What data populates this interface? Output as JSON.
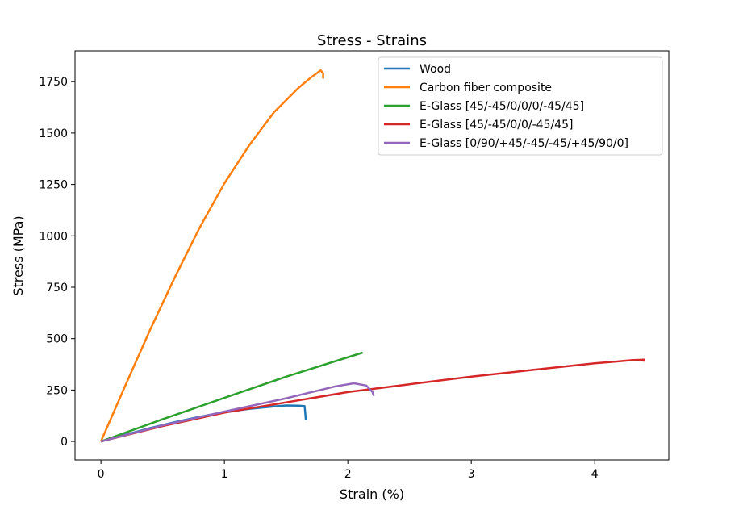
{
  "chart_data": {
    "type": "line",
    "title": "Stress - Strains",
    "xlabel": "Strain (%)",
    "ylabel": "Stress (MPa)",
    "xlim": [
      -0.21,
      4.6
    ],
    "ylim": [
      -90,
      1900
    ],
    "x_ticks": [
      0,
      1,
      2,
      3,
      4
    ],
    "x_tick_labels": [
      "0",
      "1",
      "2",
      "3",
      "4"
    ],
    "y_ticks": [
      0,
      250,
      500,
      750,
      1000,
      1250,
      1500,
      1750
    ],
    "y_tick_labels": [
      "0",
      "250",
      "500",
      "750",
      "1000",
      "1250",
      "1500",
      "1750"
    ],
    "grid": false,
    "legend_position": "top-right",
    "series": [
      {
        "name": "Wood",
        "color": "#1f77b4",
        "points": [
          [
            0,
            0
          ],
          [
            0.2,
            33
          ],
          [
            0.4,
            65
          ],
          [
            0.6,
            94
          ],
          [
            0.8,
            120
          ],
          [
            1.0,
            142
          ],
          [
            1.2,
            158
          ],
          [
            1.4,
            170
          ],
          [
            1.5,
            175
          ],
          [
            1.6,
            174
          ],
          [
            1.65,
            172
          ],
          [
            1.66,
            105
          ]
        ]
      },
      {
        "name": "Carbon fiber composite",
        "color": "#ff7f0e",
        "points": [
          [
            0,
            0
          ],
          [
            0.2,
            275
          ],
          [
            0.4,
            545
          ],
          [
            0.6,
            800
          ],
          [
            0.8,
            1040
          ],
          [
            1.0,
            1255
          ],
          [
            1.2,
            1440
          ],
          [
            1.4,
            1600
          ],
          [
            1.6,
            1720
          ],
          [
            1.7,
            1770
          ],
          [
            1.78,
            1805
          ],
          [
            1.8,
            1790
          ],
          [
            1.8,
            1765
          ]
        ]
      },
      {
        "name": "E-Glass [45/-45/0/0/0/-45/45]",
        "color": "#2ca02c",
        "points": [
          [
            0,
            0
          ],
          [
            0.5,
            108
          ],
          [
            1.0,
            212
          ],
          [
            1.5,
            315
          ],
          [
            2.12,
            432
          ]
        ]
      },
      {
        "name": "E-Glass [45/-45/0/0/-45/45]",
        "color": "#d62728",
        "points": [
          [
            0,
            0
          ],
          [
            0.5,
            75
          ],
          [
            1.0,
            140
          ],
          [
            1.5,
            190
          ],
          [
            2.0,
            240
          ],
          [
            2.5,
            278
          ],
          [
            3.0,
            315
          ],
          [
            3.5,
            348
          ],
          [
            4.0,
            380
          ],
          [
            4.3,
            395
          ],
          [
            4.4,
            398
          ],
          [
            4.4,
            388
          ]
        ]
      },
      {
        "name": "E-Glass [0/90/+45/-45/-45/+45/90/0]",
        "color": "#9467bd",
        "points": [
          [
            0,
            0
          ],
          [
            0.5,
            78
          ],
          [
            1.0,
            145
          ],
          [
            1.5,
            210
          ],
          [
            1.9,
            268
          ],
          [
            2.05,
            283
          ],
          [
            2.15,
            272
          ],
          [
            2.2,
            240
          ],
          [
            2.21,
            222
          ]
        ]
      }
    ]
  }
}
